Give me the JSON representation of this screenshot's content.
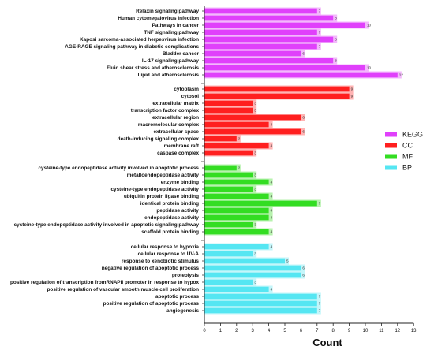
{
  "chart_data": {
    "type": "bar",
    "orientation": "horizontal",
    "xlabel": "Count",
    "xlim": [
      0,
      13
    ],
    "x_ticks": [
      "0",
      "1",
      "2",
      "3",
      "4",
      "5",
      "6",
      "7",
      "8",
      "9",
      "10",
      "11",
      "12",
      "13"
    ],
    "grid": false,
    "legend_position": "right",
    "legend": [
      {
        "name": "KEGG",
        "color": "#e040fb"
      },
      {
        "name": "CC",
        "color": "#ff1f1f"
      },
      {
        "name": "MF",
        "color": "#33dd22"
      },
      {
        "name": "BP",
        "color": "#55e6f2"
      }
    ],
    "series": [
      {
        "name": "KEGG",
        "color": "#e040fb",
        "shade": "#f3b8fc",
        "categories": [
          "Relaxin signaling pathway",
          "Human cytomegalovirus infection",
          "Pathways in cancer",
          "TNF signaling pathway",
          "Kaposi sarcoma-associated herpesvirus infection",
          "AGE-RAGE signaling pathway in diabetic complications",
          "Bladder cancer",
          "IL-17 signaling pathway",
          "Fluid shear stress and atherosclerosis",
          "Lipid and atherosclerosis"
        ],
        "values": [
          7,
          8,
          10,
          7,
          8,
          7,
          6,
          8,
          10,
          12
        ]
      },
      {
        "name": "CC",
        "color": "#ff1f1f",
        "shade": "#ffb3b3",
        "categories": [
          "cytoplasm",
          "cytosol",
          "extracellular matrix",
          "transcription factor complex",
          "extracellular region",
          "macromolecular complex",
          "extracellular space",
          "death-inducing signaling complex",
          "membrane raft",
          "caspase complex"
        ],
        "values": [
          9,
          9,
          3,
          3,
          6,
          4,
          6,
          2,
          4,
          3
        ]
      },
      {
        "name": "MF",
        "color": "#33dd22",
        "shade": "#b7f2ae",
        "categories": [
          "cysteine-type endopeptidase activity involved in apoptotic process",
          "metalloendopeptidase activity",
          "enzyme binding",
          "cysteine-type endopeptidase activity",
          "ubiquitin protein ligase binding",
          "identical protein binding",
          "peptidase activity",
          "endopeptidase activity",
          "cysteine-type endopeptidase activity involved in apoptotic signaling pathway",
          "scaffold protein binding"
        ],
        "values": [
          2,
          3,
          4,
          3,
          4,
          7,
          4,
          4,
          3,
          4
        ]
      },
      {
        "name": "BP",
        "color": "#55e6f2",
        "shade": "#c4f6fa",
        "categories": [
          "cellular response to hypoxia",
          "cellular response to UV-A",
          "response to xenobiotic stimulus",
          "negative regulation of apoptotic process",
          "proteolysis",
          "positive regulation of transcription fromRNAPII promoter in response to hypox",
          "positive regulation of vascular smooth muscle cell proliferation",
          "apoptotic process",
          "positive regulation of apoptotic process",
          "angiogenesis"
        ],
        "values": [
          4,
          3,
          5,
          6,
          6,
          3,
          4,
          7,
          7,
          7
        ]
      }
    ]
  }
}
